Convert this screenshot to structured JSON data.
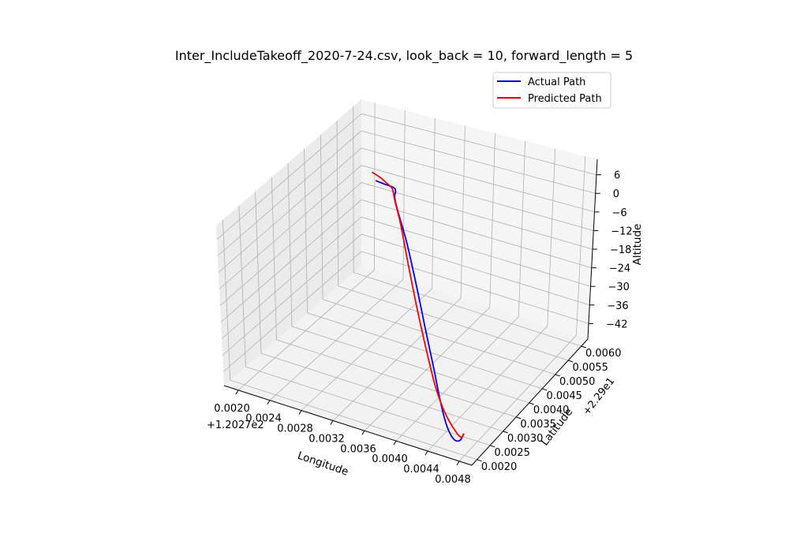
{
  "chart_data": {
    "type": "line3d",
    "title": "Inter_IncludeTakeoff_2020-7-24.csv, look_back = 10, forward_length = 5",
    "xlabel": "Longitude",
    "ylabel": "Latitude",
    "zlabel": "Altitude",
    "x_offset_label": "+1.2027e2",
    "y_offset_label": "+2.29e1",
    "x_ticks": [
      "0.0020",
      "0.0024",
      "0.0028",
      "0.0032",
      "0.0036",
      "0.0040",
      "0.0044",
      "0.0048"
    ],
    "x_tick_values": [
      0.002,
      0.0024,
      0.0028,
      0.0032,
      0.0036,
      0.004,
      0.0044,
      0.0048
    ],
    "y_ticks": [
      "0.0020",
      "0.0025",
      "0.0030",
      "0.0035",
      "0.0040",
      "0.0045",
      "0.0050",
      "0.0055",
      "0.0060"
    ],
    "y_tick_values": [
      0.002,
      0.0025,
      0.003,
      0.0035,
      0.004,
      0.0045,
      0.005,
      0.0055,
      0.006
    ],
    "z_ticks": [
      "6",
      "0",
      "−6",
      "−12",
      "−18",
      "−24",
      "−30",
      "−36",
      "−42"
    ],
    "z_tick_values": [
      6,
      0,
      -6,
      -12,
      -18,
      -24,
      -30,
      -36,
      -42
    ],
    "xlim": [
      0.00182,
      0.00496
    ],
    "ylim": [
      0.0018,
      0.00625
    ],
    "zlim": [
      -47,
      11
    ],
    "grid": true,
    "legend_position": "top-right",
    "series": [
      {
        "name": "Actual Path",
        "color": "#0000ff",
        "points": [
          [
            0.00475,
            0.00212,
            -41.0
          ],
          [
            0.00468,
            0.00218,
            -44.6
          ],
          [
            0.00456,
            0.0023,
            -46.3
          ],
          [
            0.0044,
            0.00252,
            -45.5
          ],
          [
            0.0042,
            0.00285,
            -42.0
          ],
          [
            0.00398,
            0.00322,
            -36.0
          ],
          [
            0.00372,
            0.00362,
            -28.0
          ],
          [
            0.00345,
            0.00402,
            -19.0
          ],
          [
            0.00318,
            0.0044,
            -10.5
          ],
          [
            0.00294,
            0.0047,
            -4.0
          ],
          [
            0.00284,
            0.00486,
            -2.0
          ],
          [
            0.00282,
            0.00494,
            -0.9
          ],
          [
            0.00276,
            0.00503,
            -1.0
          ],
          [
            0.0026,
            0.00513,
            -1.9
          ],
          [
            0.00245,
            0.00521,
            -2.6
          ]
        ]
      },
      {
        "name": "Predicted Path",
        "color": "#ff0000",
        "points": [
          [
            0.00475,
            0.00212,
            -41.0
          ],
          [
            0.00469,
            0.0022,
            -43.6
          ],
          [
            0.00455,
            0.0024,
            -44.7
          ],
          [
            0.00432,
            0.00268,
            -43.2
          ],
          [
            0.00408,
            0.00301,
            -39.5
          ],
          [
            0.00382,
            0.0034,
            -33.0
          ],
          [
            0.00355,
            0.0038,
            -24.8
          ],
          [
            0.00326,
            0.00424,
            -15.5
          ],
          [
            0.00302,
            0.0046,
            -7.2
          ],
          [
            0.00286,
            0.00482,
            -2.9
          ],
          [
            0.00276,
            0.00498,
            -0.9
          ],
          [
            0.00264,
            0.00508,
            -0.6
          ],
          [
            0.00252,
            0.00516,
            -0.3
          ],
          [
            0.0024,
            0.00521,
            0.0
          ]
        ]
      }
    ]
  }
}
